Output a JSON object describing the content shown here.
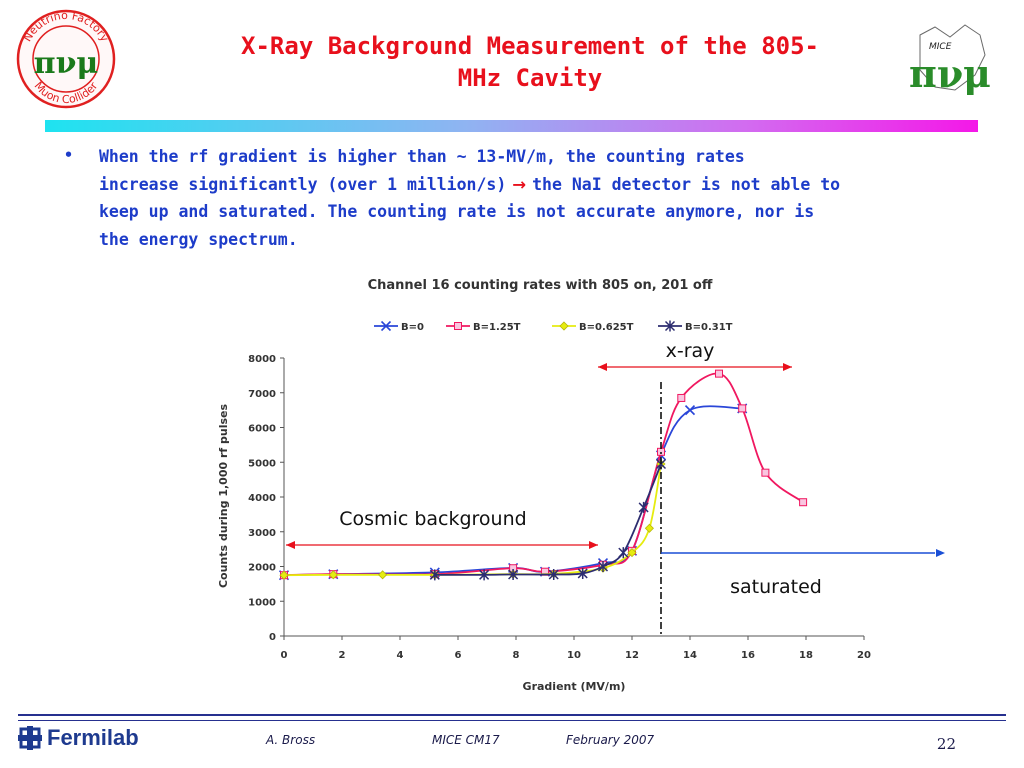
{
  "slide": {
    "title_line1": "X-Ray Background Measurement of the 805-",
    "title_line2": "MHz Cavity",
    "bullet_symbol": "•",
    "bullet_lines": [
      "When the rf gradient is higher than ~ 13-MV/m, the counting rates",
      "increase significantly (over 1 million/s)",
      "the NaI detector is not able to",
      "keep up and saturated. The counting rate is not accurate anymore, nor is",
      "the energy spectrum."
    ],
    "arrow_symbol": "→",
    "annotations": {
      "cosmic": "Cosmic background",
      "xray": "x-ray",
      "saturated": "saturated"
    },
    "logos": {
      "left_ring_top": "Neutrino Factory",
      "left_ring_bottom": "Muon Collider",
      "left_symbol": "πνμ",
      "right_label": "MICE",
      "right_symbol": "πνμ"
    },
    "footer": {
      "org": "Fermilab",
      "author": "A. Bross",
      "meeting": "MICE CM17",
      "date": "February 2007",
      "page": "22"
    },
    "colors": {
      "title": "#e8101c",
      "body_text": "#1d3cc9",
      "annotation_arrow": "#e8101c",
      "saturated_arrow": "#1a4fd6",
      "footer_rule": "#26308f"
    }
  },
  "chart_data": {
    "type": "line",
    "title": "Channel 16 counting rates with 805 on, 201 off",
    "xlabel": "Gradient (MV/m)",
    "ylabel": "Counts during 1,000 rf pulses",
    "xlim": [
      0,
      20
    ],
    "ylim": [
      0,
      8000
    ],
    "xticks": [
      0,
      2,
      4,
      6,
      8,
      10,
      12,
      14,
      16,
      18,
      20
    ],
    "yticks": [
      0,
      1000,
      2000,
      3000,
      4000,
      5000,
      6000,
      7000,
      8000
    ],
    "grid": false,
    "legend_position": "top",
    "series": [
      {
        "name": "B=0",
        "color": "#2a46d8",
        "marker": "x",
        "points": [
          [
            0,
            1750
          ],
          [
            1.7,
            1780
          ],
          [
            5.2,
            1830
          ],
          [
            7.9,
            1960
          ],
          [
            9.0,
            1850
          ],
          [
            11.0,
            2100
          ],
          [
            12.0,
            2450
          ],
          [
            13.0,
            5200
          ],
          [
            14.0,
            6500
          ],
          [
            15.8,
            6550
          ]
        ]
      },
      {
        "name": "B=1.25T",
        "color": "#f01860",
        "marker": "square",
        "points": [
          [
            0,
            1750
          ],
          [
            1.7,
            1780
          ],
          [
            5.2,
            1780
          ],
          [
            7.9,
            1950
          ],
          [
            9.0,
            1850
          ],
          [
            11.0,
            2050
          ],
          [
            12.0,
            2450
          ],
          [
            13.0,
            5300
          ],
          [
            13.7,
            6850
          ],
          [
            15.0,
            7550
          ],
          [
            15.8,
            6550
          ],
          [
            16.6,
            4700
          ],
          [
            17.9,
            3850
          ]
        ]
      },
      {
        "name": "B=0.625T",
        "color": "#e6ec10",
        "marker": "diamond",
        "points": [
          [
            0,
            1750
          ],
          [
            1.7,
            1760
          ],
          [
            3.4,
            1760
          ],
          [
            5.2,
            1760
          ],
          [
            7.9,
            1780
          ],
          [
            9.3,
            1790
          ],
          [
            11.0,
            1950
          ],
          [
            12.0,
            2400
          ],
          [
            12.6,
            3100
          ],
          [
            13.0,
            4950
          ]
        ]
      },
      {
        "name": "B=0.31T",
        "color": "#2d2d70",
        "marker": "star",
        "points": [
          [
            5.2,
            1760
          ],
          [
            6.9,
            1760
          ],
          [
            7.9,
            1770
          ],
          [
            9.3,
            1770
          ],
          [
            10.3,
            1800
          ],
          [
            11.0,
            2000
          ],
          [
            11.7,
            2400
          ],
          [
            12.4,
            3700
          ],
          [
            13.0,
            4950
          ]
        ]
      }
    ]
  }
}
